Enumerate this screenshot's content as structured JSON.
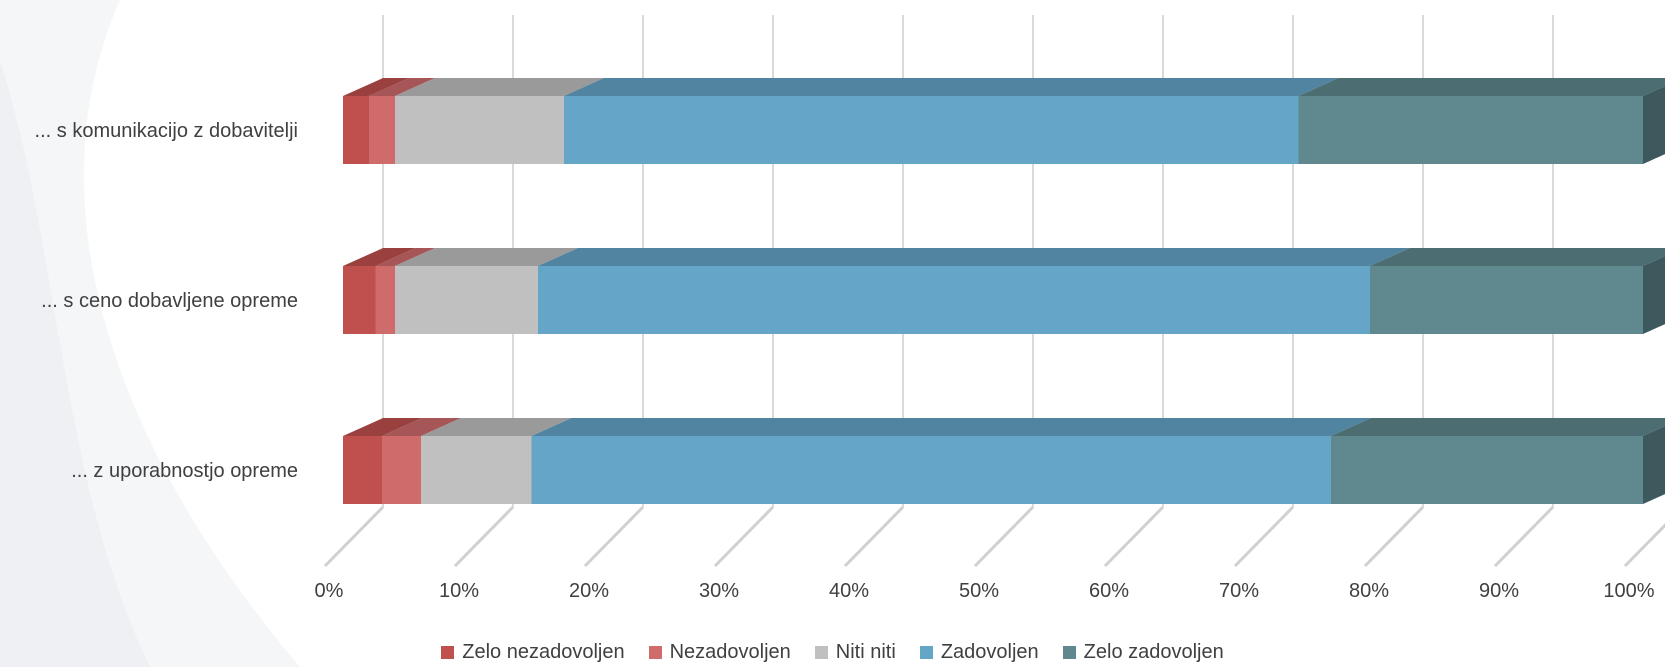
{
  "chart_data": {
    "type": "bar",
    "orientation": "horizontal",
    "stacked": "100%",
    "categories": [
      "... s komunikacijo z dobavitelji",
      "... s ceno dobavljene opreme",
      "... z uporabnostjo opreme"
    ],
    "series": [
      {
        "name": "Zelo nezadovoljen",
        "color": "#C0504D",
        "values": [
          2,
          2.5,
          3
        ]
      },
      {
        "name": "Nezadovoljen",
        "color": "#CF6B6B",
        "values": [
          2,
          1.5,
          3
        ]
      },
      {
        "name": "Niti niti",
        "color": "#C0C0C0",
        "values": [
          13,
          11,
          8.5
        ]
      },
      {
        "name": "Zadovoljen",
        "color": "#64A5C8",
        "values": [
          56.5,
          64,
          61.5
        ]
      },
      {
        "name": "Zelo zadovoljen",
        "color": "#5F898F",
        "values": [
          26.5,
          21,
          24
        ]
      }
    ],
    "xlim": [
      0,
      100
    ],
    "x_ticks": [
      "0%",
      "10%",
      "20%",
      "30%",
      "40%",
      "50%",
      "60%",
      "70%",
      "80%",
      "90%",
      "100%"
    ],
    "grid": true,
    "legend_position": "bottom",
    "style": "3d"
  }
}
